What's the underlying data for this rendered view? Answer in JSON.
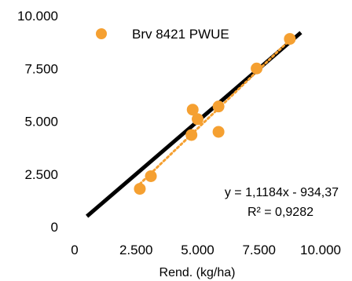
{
  "chart_data": {
    "type": "scatter",
    "title": "",
    "xlabel": "Rend. (kg/ha)",
    "ylabel": "",
    "xlim": [
      0,
      10000
    ],
    "ylim": [
      0,
      10000
    ],
    "x_ticks": [
      0,
      2500,
      5000,
      7500,
      10000
    ],
    "y_ticks": [
      0,
      2500,
      5000,
      7500,
      10000
    ],
    "x_tick_labels": [
      "0",
      "2.500",
      "5.000",
      "7.500",
      "10.000"
    ],
    "y_tick_labels": [
      "0",
      "2.500",
      "5.000",
      "7.500",
      "10.000"
    ],
    "grid": false,
    "legend_position": "top-left",
    "series": [
      {
        "name": "Brv 8421 PWUE",
        "color": "#F5A031",
        "marker": "circle",
        "points": [
          {
            "x": 2650,
            "y": 1800
          },
          {
            "x": 3100,
            "y": 2400
          },
          {
            "x": 4750,
            "y": 4350
          },
          {
            "x": 4800,
            "y": 5550
          },
          {
            "x": 5000,
            "y": 5100
          },
          {
            "x": 5850,
            "y": 5700
          },
          {
            "x": 5850,
            "y": 4500
          },
          {
            "x": 7400,
            "y": 7500
          },
          {
            "x": 8750,
            "y": 8900
          }
        ]
      }
    ],
    "reference_line": {
      "color": "#000000",
      "from": {
        "x": 500,
        "y": 500
      },
      "to": {
        "x": 9200,
        "y": 9200
      }
    },
    "trendline": {
      "color": "#F5A031",
      "style": "dotted",
      "slope": 1.1184,
      "intercept": -934.37,
      "x_from": 2650,
      "x_to": 8750
    },
    "annotations": {
      "equation": "y = 1,1184x - 934,37",
      "r_squared": "R² = 0,9282"
    }
  }
}
